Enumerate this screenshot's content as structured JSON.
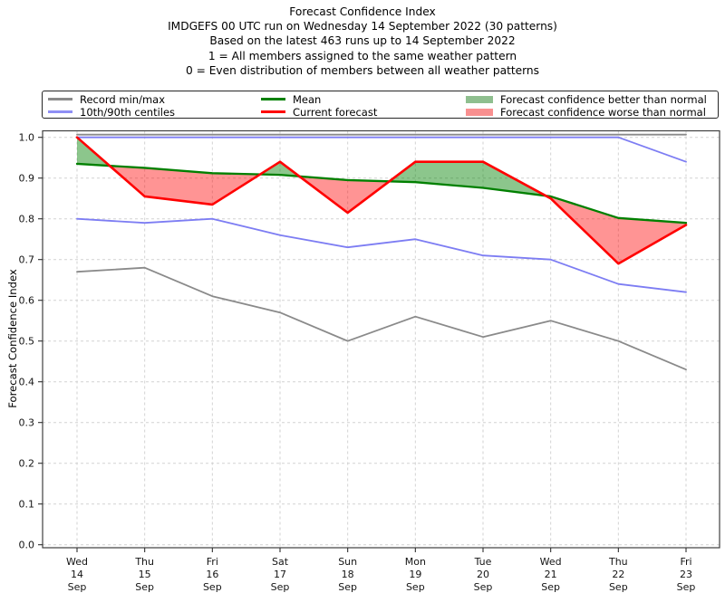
{
  "chart_data": {
    "type": "line",
    "title": "Forecast Confidence Index",
    "subtitle_lines": [
      "IMDGEFS 00 UTC run on Wednesday 14 September 2022 (30 patterns)",
      "Based on the latest 463 runs up to 14 September 2022",
      "1 = All members assigned to the same weather pattern",
      "0 = Even distribution of members between all weather patterns"
    ],
    "ylabel": "Forecast Confidence Index",
    "xlabel": "",
    "ylim": [
      0.0,
      1.02
    ],
    "grid": true,
    "legend_position": "top",
    "categories": [
      "Wed 14 Sep",
      "Thu 15 Sep",
      "Fri 16 Sep",
      "Sat 17 Sep",
      "Sun 18 Sep",
      "Mon 19 Sep",
      "Tue 20 Sep",
      "Wed 21 Sep",
      "Thu 22 Sep",
      "Fri 23 Sep"
    ],
    "x_tick_labels": [
      [
        "Wed",
        "14",
        "Sep"
      ],
      [
        "Thu",
        "15",
        "Sep"
      ],
      [
        "Fri",
        "16",
        "Sep"
      ],
      [
        "Sat",
        "17",
        "Sep"
      ],
      [
        "Sun",
        "18",
        "Sep"
      ],
      [
        "Mon",
        "19",
        "Sep"
      ],
      [
        "Tue",
        "20",
        "Sep"
      ],
      [
        "Wed",
        "21",
        "Sep"
      ],
      [
        "Thu",
        "22",
        "Sep"
      ],
      [
        "Fri",
        "23",
        "Sep"
      ]
    ],
    "yticks": [
      "0.0",
      "0.1",
      "0.2",
      "0.3",
      "0.4",
      "0.5",
      "0.6",
      "0.7",
      "0.8",
      "0.9",
      "1.0"
    ],
    "series": [
      {
        "id": "record_max",
        "name": "Record max",
        "color": "#8a8a8a",
        "values": [
          1.0,
          1.0,
          1.0,
          1.0,
          1.0,
          1.0,
          1.0,
          1.0,
          1.0,
          1.0
        ]
      },
      {
        "id": "record_min",
        "name": "Record min",
        "color": "#8a8a8a",
        "values": [
          0.67,
          0.68,
          0.61,
          0.57,
          0.5,
          0.56,
          0.51,
          0.55,
          0.5,
          0.43
        ]
      },
      {
        "id": "p90",
        "name": "90th centile",
        "color": "#7d7df3",
        "values": [
          1.0,
          1.0,
          1.0,
          1.0,
          1.0,
          1.0,
          1.0,
          1.0,
          1.0,
          0.94
        ]
      },
      {
        "id": "p10",
        "name": "10th centile",
        "color": "#7d7df3",
        "values": [
          0.8,
          0.79,
          0.8,
          0.76,
          0.73,
          0.75,
          0.71,
          0.7,
          0.64,
          0.62
        ]
      },
      {
        "id": "mean",
        "name": "Mean",
        "color": "#008000",
        "values": [
          0.935,
          0.925,
          0.912,
          0.908,
          0.895,
          0.89,
          0.876,
          0.855,
          0.802,
          0.79
        ]
      },
      {
        "id": "current_forecast",
        "name": "Current forecast",
        "color": "#ff0000",
        "values": [
          1.0,
          0.855,
          0.835,
          0.94,
          0.815,
          0.94,
          0.94,
          0.85,
          0.69,
          0.785
        ]
      }
    ],
    "fill_between": {
      "upper": "current_forecast",
      "lower": "mean",
      "better_color": "rgba(0,128,0,0.45)",
      "worse_color": "rgba(255,0,0,0.42)"
    },
    "legend": {
      "entries": [
        {
          "label": "Record min/max",
          "swatch": "line",
          "color": "#8a8a8a"
        },
        {
          "label": "10th/90th centiles",
          "swatch": "line",
          "color": "#8f8ff5"
        },
        {
          "label": "Mean",
          "swatch": "line",
          "color": "#008000"
        },
        {
          "label": "Current forecast",
          "swatch": "line",
          "color": "#ff0000"
        },
        {
          "label": "Forecast confidence better than normal",
          "swatch": "patch",
          "color": "#8fbf8f"
        },
        {
          "label": "Forecast confidence worse than normal",
          "swatch": "patch",
          "color": "#f99090"
        }
      ]
    }
  }
}
